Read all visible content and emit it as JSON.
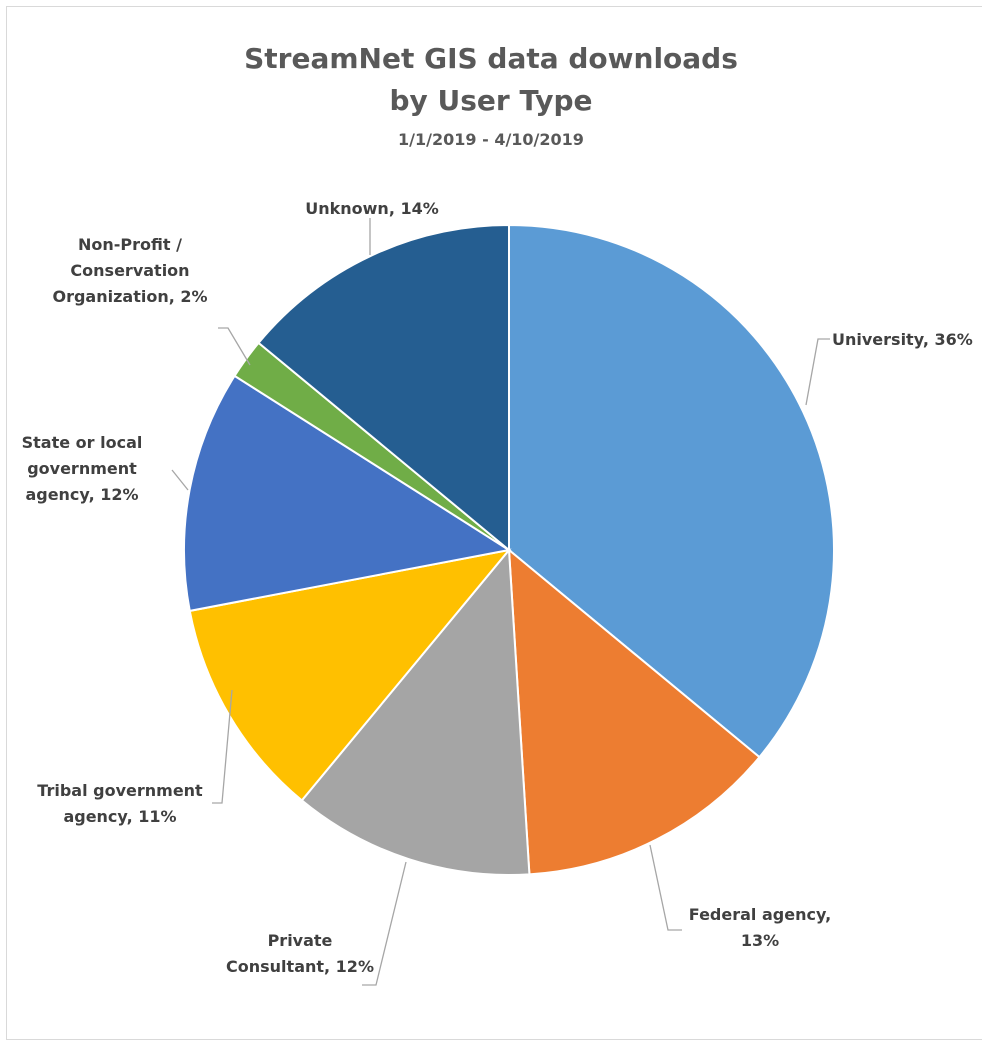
{
  "chart_data": {
    "type": "pie",
    "title_line1": "StreamNet GIS data downloads",
    "title_line2": "by User Type",
    "subtitle": "1/1/2019 - 4/10/2019",
    "start_angle_deg": 0,
    "direction": "clockwise",
    "slices": [
      {
        "name": "University",
        "value": 36,
        "label_lines": [
          "University, 36%"
        ],
        "color": "#5B9BD5"
      },
      {
        "name": "Federal agency",
        "value": 13,
        "label_lines": [
          "Federal agency,",
          "13%"
        ],
        "color": "#ED7D31"
      },
      {
        "name": "Private Consultant",
        "value": 12,
        "label_lines": [
          "Private",
          "Consultant, 12%"
        ],
        "color": "#A5A5A5"
      },
      {
        "name": "Tribal government agency",
        "value": 11,
        "label_lines": [
          "Tribal government",
          "agency, 11%"
        ],
        "color": "#FFC000"
      },
      {
        "name": "State or local government agency",
        "value": 12,
        "label_lines": [
          "State or local",
          "government",
          "agency, 12%"
        ],
        "color": "#4472C4"
      },
      {
        "name": "Non-Profit / Conservation Organization",
        "value": 2,
        "label_lines": [
          "Non-Profit /",
          "Conservation",
          "Organization, 2%"
        ],
        "color": "#70AD47"
      },
      {
        "name": "Unknown",
        "value": 14,
        "label_lines": [
          "Unknown, 14%"
        ],
        "color": "#255E91"
      }
    ]
  }
}
